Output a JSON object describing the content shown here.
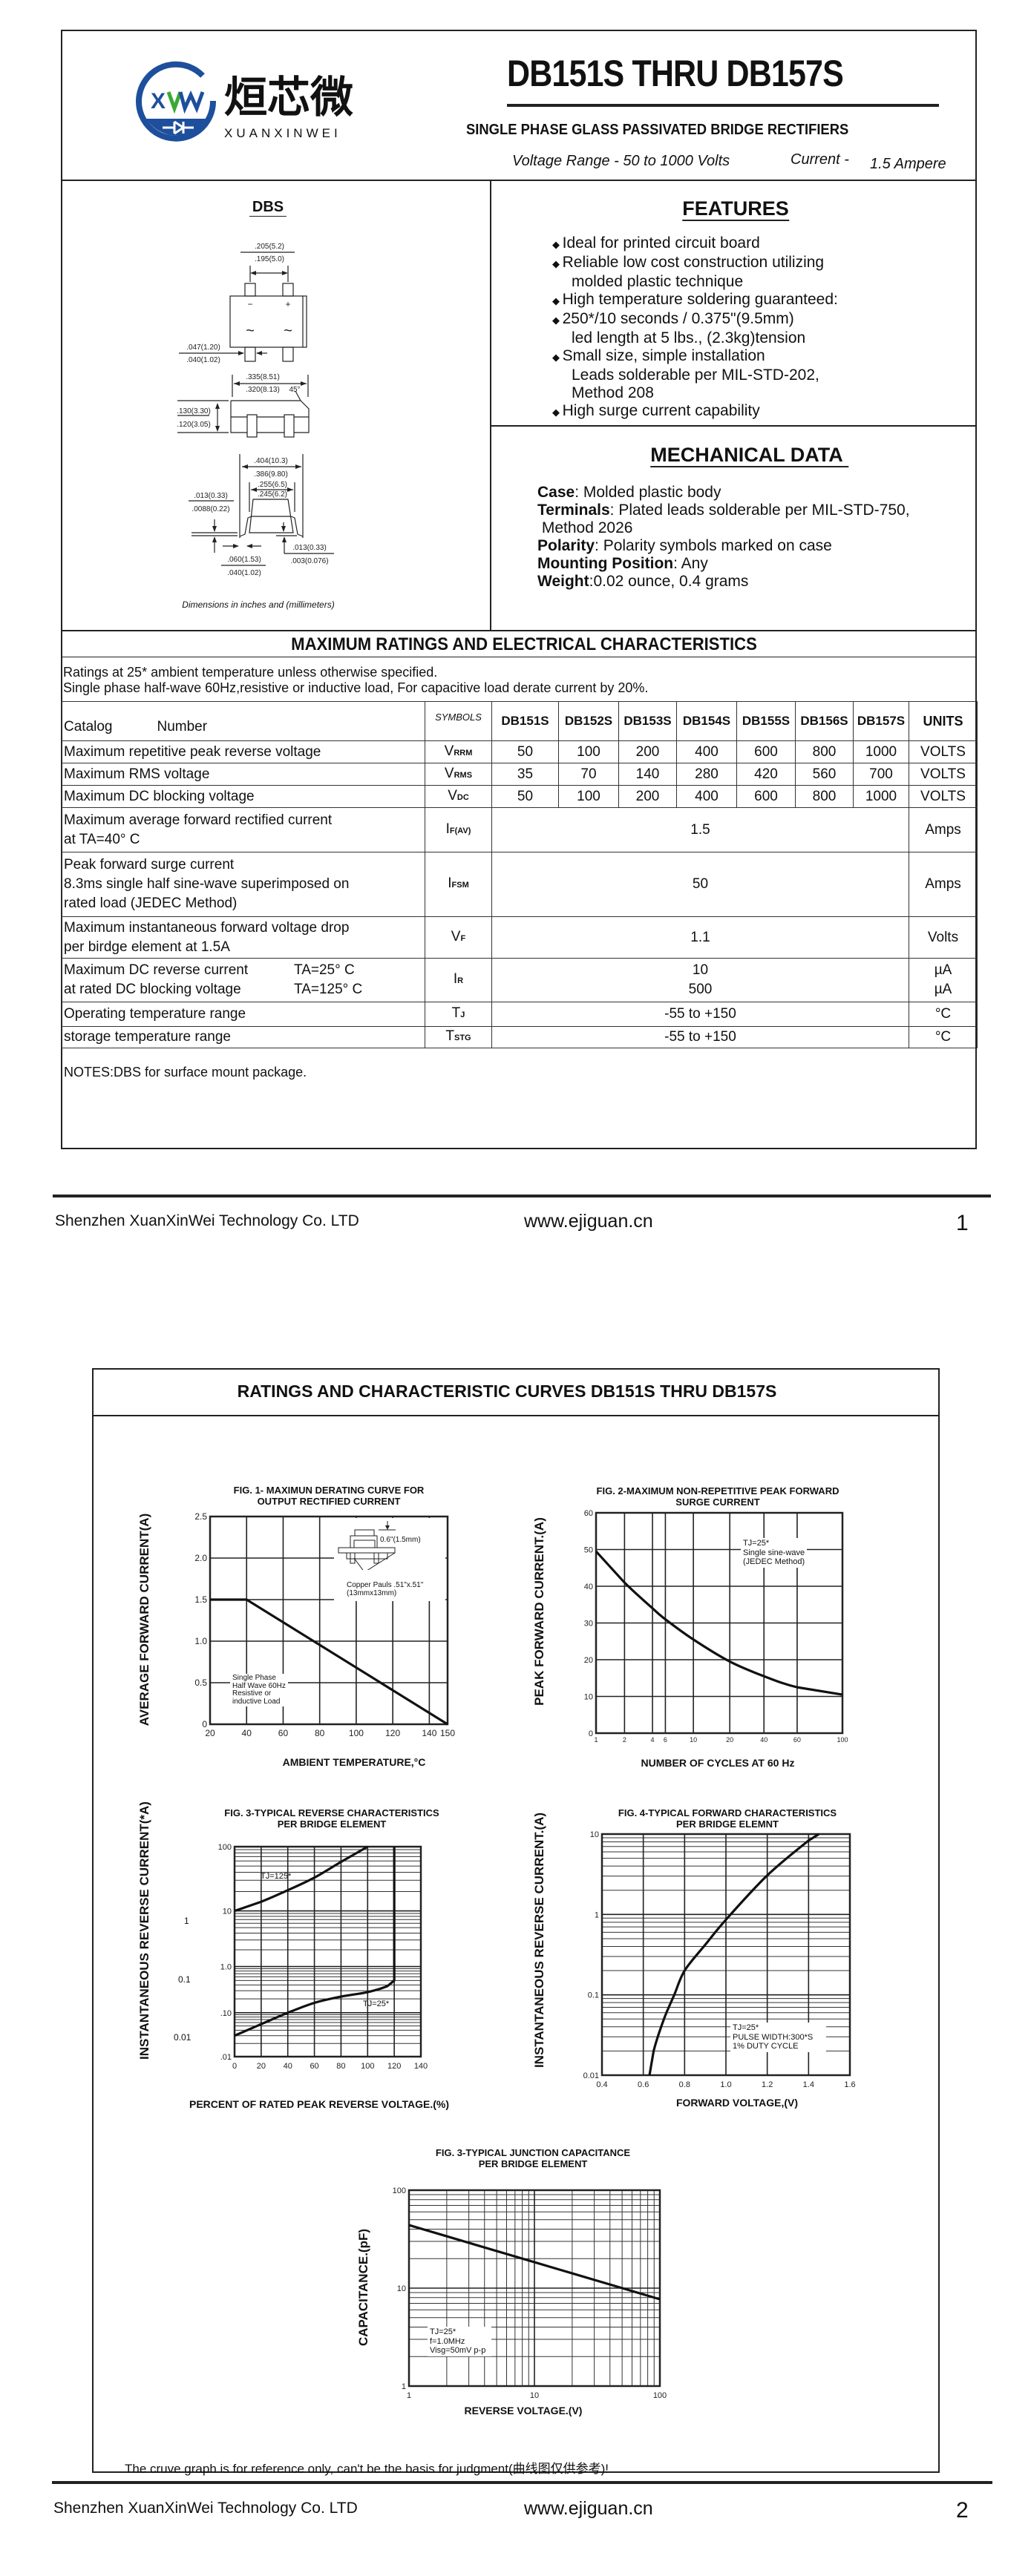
{
  "logo": {
    "chinese": "烜芯微",
    "latin": "XUANXINWEI",
    "mark": "XW",
    "colors": {
      "blue": "#1e4f9c",
      "green": "#3aa935"
    }
  },
  "header": {
    "title": "DB151S THRU DB157S",
    "subtitle": "SINGLE PHASE GLASS PASSIVATED BRIDGE RECTIFIERS",
    "voltage_range": "Voltage Range - 50 to 1000 Volts",
    "current": "Current -",
    "current_value": "1.5 Ampere"
  },
  "package": {
    "name": "DBS",
    "caption": "Dimensions in inches and (millimeters)",
    "pin_minus": "−",
    "pin_plus": "+",
    "ac1": "~",
    "ac2": "~",
    "dims": [
      ".205(5.2)",
      ".195(5.0)",
      ".047(1.20)",
      ".040(1.02)",
      ".335(8.51)",
      ".320(8.13)",
      "45°",
      ".130(3.30)",
      ".120(3.05)",
      ".404(10.3)",
      ".386(9.80)",
      ".255(6.5)",
      ".245(6.2)",
      ".013(0.33)",
      ".0088(0.22)",
      ".060(1.53)",
      ".040(1.02)",
      ".013(0.33)",
      ".003(0.076)"
    ]
  },
  "features": {
    "heading": "FEATURES",
    "bullet_icon": "diamond-bullet",
    "lines": [
      {
        "bullet": true,
        "text": "Ideal for printed circuit board"
      },
      {
        "bullet": true,
        "text": "Reliable low cost construction utilizing"
      },
      {
        "bullet": false,
        "text": "molded plastic technique"
      },
      {
        "bullet": true,
        "text": "High temperature soldering guaranteed:"
      },
      {
        "bullet": true,
        "text": "250*/10 seconds / 0.375\"(9.5mm)"
      },
      {
        "bullet": false,
        "text": "led length at 5 lbs., (2.3kg)tension"
      },
      {
        "bullet": true,
        "text": "Small size, simple installation"
      },
      {
        "bullet": false,
        "text": "Leads solderable per MIL-STD-202,"
      },
      {
        "bullet": false,
        "text": "Method 208"
      },
      {
        "bullet": true,
        "text": "High surge current capability"
      }
    ]
  },
  "mechanical": {
    "heading": "MECHANICAL DATA",
    "items": [
      {
        "label": "Case",
        "text": ": Molded plastic body"
      },
      {
        "label": "Terminals",
        "text": ": Plated leads solderable per MIL-STD-750,"
      },
      {
        "label": "",
        "text": " Method 2026"
      },
      {
        "label": "Polarity",
        "text": ": Polarity symbols marked on case"
      },
      {
        "label": "Mounting Position",
        "text": ": Any"
      },
      {
        "label": "Weight",
        "text": ":0.02 ounce, 0.4 grams"
      }
    ]
  },
  "ratings": {
    "heading": "MAXIMUM RATINGS AND ELECTRICAL CHARACTERISTICS",
    "note1": "Ratings at 25* ambient temperature unless otherwise specified.",
    "note2": "Single phase half-wave 60Hz,resistive or inductive load, For capacitive load derate current by 20%.",
    "header": {
      "catalog": "Catalog",
      "number": "Number",
      "symbols": "SYMBOLS",
      "parts": [
        "DB151S",
        "DB152S",
        "DB153S",
        "DB154S",
        "DB155S",
        "DB156S",
        "DB157S"
      ],
      "units": "UNITS"
    },
    "rows": [
      {
        "label": [
          "Maximum repetitive peak reverse voltage"
        ],
        "sym": "V",
        "sub": "RRM",
        "values": [
          "50",
          "100",
          "200",
          "400",
          "600",
          "800",
          "1000"
        ],
        "unit": "VOLTS"
      },
      {
        "label": [
          "Maximum RMS voltage"
        ],
        "sym": "V",
        "sub": "RMS",
        "values": [
          "35",
          "70",
          "140",
          "280",
          "420",
          "560",
          "700"
        ],
        "unit": "VOLTS"
      },
      {
        "label": [
          "Maximum DC blocking voltage"
        ],
        "sym": "V",
        "sub": "DC",
        "values": [
          "50",
          "100",
          "200",
          "400",
          "600",
          "800",
          "1000"
        ],
        "unit": "VOLTS"
      },
      {
        "label": [
          "Maximum average forward rectified current",
          "at TA=40° C"
        ],
        "sym": "I",
        "sub": "F(AV)",
        "value": "1.5",
        "unit": "Amps"
      },
      {
        "label": [
          "Peak forward surge current",
          "8.3ms single half sine-wave superimposed on",
          "rated load (JEDEC Method)"
        ],
        "sym": "I",
        "sub": "FSM",
        "value": "50",
        "unit": "Amps"
      },
      {
        "label": [
          "Maximum instantaneous forward voltage drop",
          "per birdge element at 1.5A"
        ],
        "sym": "V",
        "sub": "F",
        "value": "1.1",
        "unit": "Volts"
      },
      {
        "label": [
          "Maximum DC reverse current",
          "at rated DC blocking voltage"
        ],
        "cond": [
          "TA=25° C",
          "TA=125° C"
        ],
        "sym": "I",
        "sub": "R",
        "values2": [
          "10",
          "500"
        ],
        "units2": [
          "µA",
          "µA"
        ]
      },
      {
        "label": [
          "Operating temperature range"
        ],
        "sym": "T",
        "sub": "J",
        "value": "-55 to +150",
        "unit": "°C"
      },
      {
        "label": [
          "storage temperature range"
        ],
        "sym": "T",
        "sub": "STG",
        "value": "-55 to +150",
        "unit": "°C"
      }
    ],
    "notes": "NOTES:DBS for surface mount package."
  },
  "footer": {
    "company": "Shenzhen XuanXinWei Technology Co. LTD",
    "website": "www.ejiguan.cn",
    "page1": "1",
    "page2": "2"
  },
  "page2": {
    "heading": "RATINGS AND CHARACTERISTIC CURVES DB151S THRU DB157S",
    "disclaimer": "The cruve graph is for reference only, can't be the basis for judgment(曲线图仅供参考)!"
  },
  "chart_data": [
    {
      "type": "line",
      "title": [
        "FIG. 1- MAXIMUN DERATING CURVE FOR",
        "OUTPUT RECTIFIED CURRENT"
      ],
      "xlabel": "AMBIENT TEMPERATURE,°C",
      "ylabel": "AVERAGE FORWARD CURRENT(A)",
      "xlim": [
        20,
        150
      ],
      "ylim": [
        0,
        2.5
      ],
      "grid": true,
      "x_ticks": [
        "20",
        "40",
        "60",
        "80",
        "100",
        "120",
        "140",
        "150"
      ],
      "y_ticks": [
        "0",
        "0.5",
        "1.0",
        "1.5",
        "2.0",
        "2.5"
      ],
      "series": [
        {
          "x": [
            20,
            40,
            150
          ],
          "y": [
            1.5,
            1.5,
            0
          ]
        }
      ],
      "annotations": {
        "lead": "0.6\"(1.5mm)",
        "pad": [
          "Copper Pauls .51\"x.51\"",
          "(13mmx13mm)"
        ],
        "conditions": [
          "Single Phase",
          "Half Wave 60Hz",
          "Resistive or",
          "inductive Load"
        ]
      }
    },
    {
      "type": "line",
      "title": [
        "FIG. 2-MAXIMUM NON-REPETITIVE PEAK FORWARD",
        "SURGE CURRENT"
      ],
      "xlabel": "NUMBER OF CYCLES AT 60 Hz",
      "ylabel": "PEAK  FORWARD CURRENT.(A)",
      "xlim": [
        1,
        100
      ],
      "ylim": [
        0,
        60
      ],
      "grid": true,
      "x_ticks": [
        "1",
        "2",
        "4",
        "6",
        "10",
        "20",
        "40",
        "60",
        "100"
      ],
      "y_ticks": [
        "0",
        "10",
        "20",
        "30",
        "40",
        "50",
        "60"
      ],
      "series": [
        {
          "x": [
            1,
            2,
            4,
            6,
            10,
            20,
            40,
            60,
            100
          ],
          "y": [
            49.5,
            41,
            34,
            31,
            25.5,
            19.5,
            15.5,
            12.5,
            10.5
          ]
        }
      ],
      "annotations": {
        "lines": [
          "TJ=25*",
          "Single sine-wave",
          "(JEDEC Method)"
        ]
      }
    },
    {
      "type": "line",
      "title": [
        "FIG. 3-TYPICAL REVERSE CHARACTERISTICS",
        "PER BRIDGE ELEMENT"
      ],
      "xlabel": "PERCENT OF RATED PEAK REVERSE VOLTAGE.(%)",
      "ylabel": "INSTANTANEOUS REVERSE CURRENT(*A)",
      "xlim": [
        0,
        140
      ],
      "ylim": [
        0.01,
        100
      ],
      "yscale": "log",
      "grid": true,
      "x_ticks": [
        "0",
        "20",
        "40",
        "60",
        "80",
        "100",
        "120",
        "140"
      ],
      "y_ticks": [
        ".01",
        ".10",
        "1.0",
        "10",
        "100"
      ],
      "outer_y_labels": [
        "1",
        "0.1",
        "0.01"
      ],
      "series": [
        {
          "name": "TJ=125*",
          "x": [
            0,
            20,
            40,
            60,
            80,
            100
          ],
          "y": [
            10,
            13.9,
            21,
            33,
            58,
            100
          ]
        },
        {
          "name": "TJ=25*",
          "x": [
            0,
            20,
            40,
            60,
            80,
            100,
            115,
            120,
            120
          ],
          "y": [
            0.03,
            0.055,
            0.1,
            0.164,
            0.224,
            0.28,
            0.38,
            0.5,
            100
          ]
        }
      ]
    },
    {
      "type": "line",
      "title": [
        "FIG. 4-TYPICAL FORWARD CHARACTERISTICS",
        "PER BRIDGE ELEMNT"
      ],
      "xlabel": "FORWARD VOLTAGE,(V)",
      "ylabel": "INSTANTANEOUS REVERSE CURRENT.(A)",
      "xlim": [
        0.4,
        1.6
      ],
      "ylim": [
        0.01,
        10
      ],
      "yscale": "log",
      "grid": true,
      "x_ticks": [
        "0.4",
        "0.6",
        "0.8",
        "1.0",
        "1.2",
        "1.4",
        "1.6"
      ],
      "y_ticks": [
        "0.01",
        "0.1",
        "1",
        "10"
      ],
      "series": [
        {
          "x": [
            0.63,
            0.65,
            0.7,
            0.75,
            0.8,
            0.9,
            1.0,
            1.2,
            1.4,
            1.45
          ],
          "y": [
            0.01,
            0.02,
            0.05,
            0.1,
            0.2,
            0.42,
            0.86,
            3.06,
            8.3,
            10
          ]
        }
      ],
      "annotations": {
        "lines": [
          "TJ=25*",
          "PULSE WIDTH:300*S",
          "1% DUTY CYCLE"
        ]
      }
    },
    {
      "type": "line",
      "title": [
        "FIG. 3-TYPICAL JUNCTION CAPACITANCE",
        "PER BRIDGE ELEMENT"
      ],
      "xlabel": "REVERSE VOLTAGE.(V)",
      "ylabel": "CAPACITANCE.(pF)",
      "xlim": [
        1,
        100
      ],
      "ylim": [
        1,
        100
      ],
      "xscale": "log",
      "yscale": "log",
      "grid": true,
      "x_ticks": [
        "1",
        "10",
        "100"
      ],
      "y_ticks": [
        "1",
        "10",
        "100"
      ],
      "series": [
        {
          "x": [
            1,
            100
          ],
          "y": [
            44,
            7.7
          ]
        }
      ],
      "annotations": {
        "lines": [
          "TJ=25*",
          "f=1.0MHz",
          "Visg=50mV p-p"
        ]
      }
    }
  ]
}
